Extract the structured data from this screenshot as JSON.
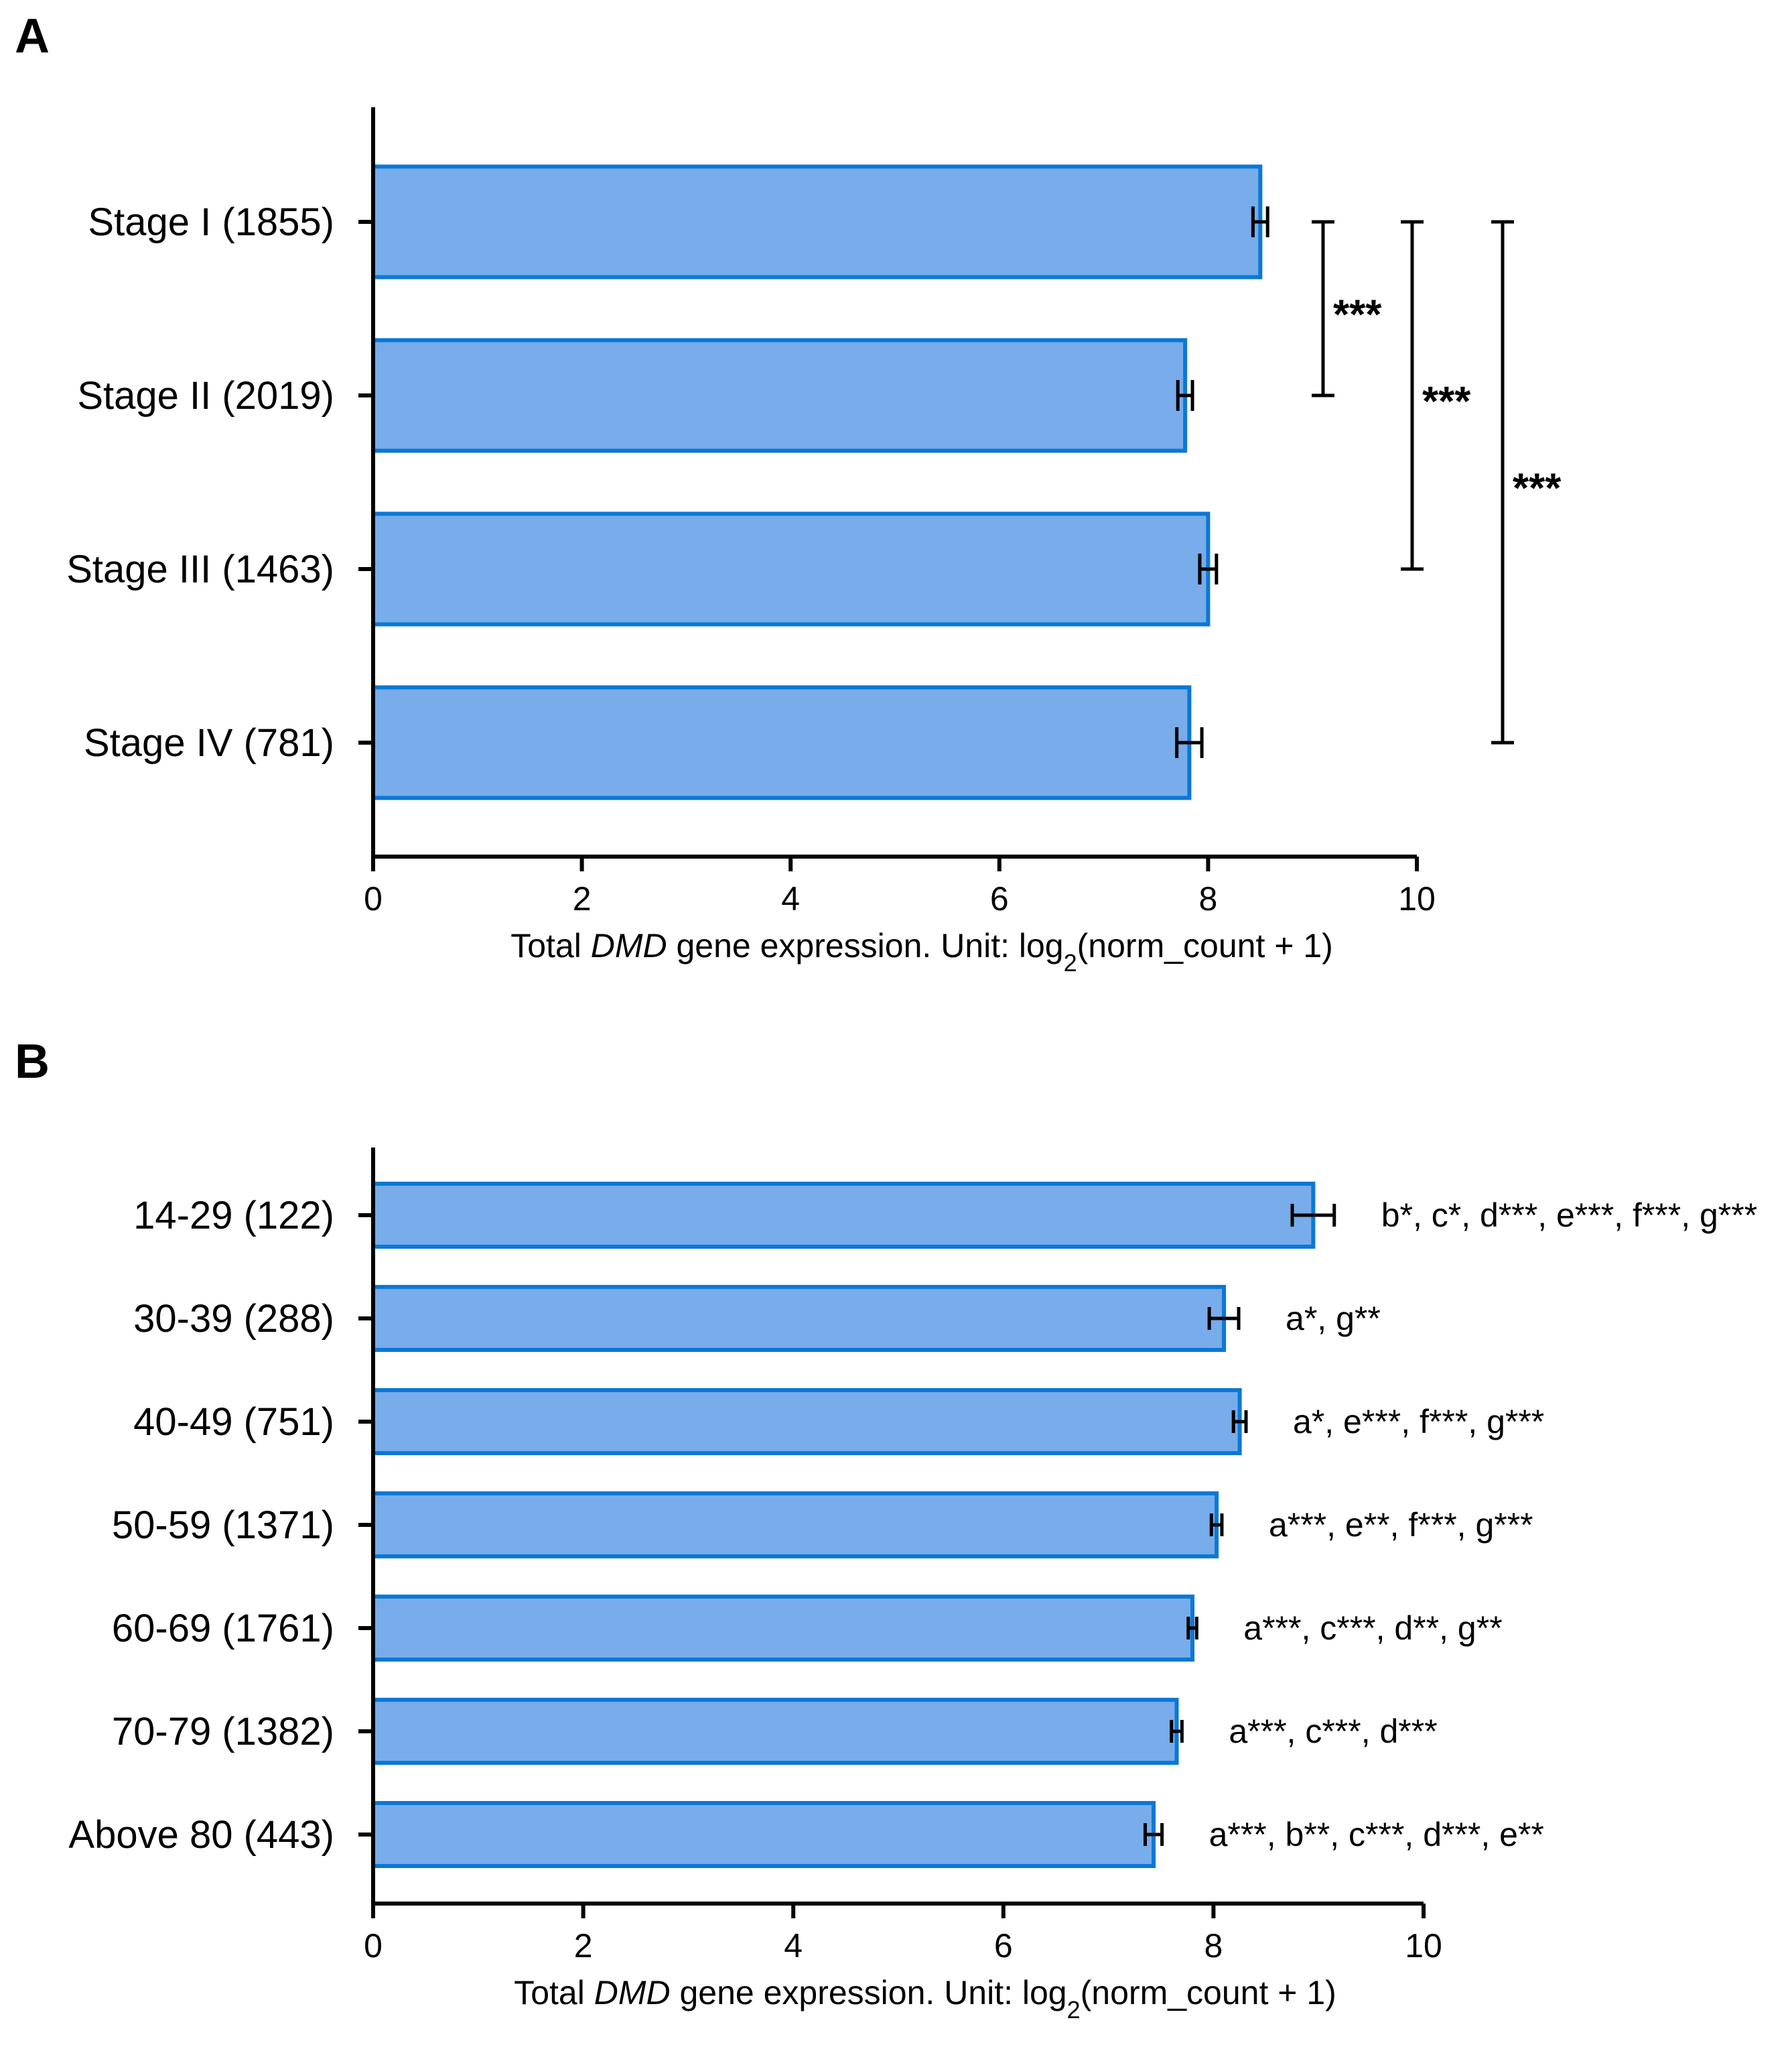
{
  "panel_a_letter": "A",
  "panel_b_letter": "B",
  "chart_data": [
    {
      "panel": "A",
      "type": "bar",
      "orientation": "horizontal",
      "categories": [
        "Stage I (1855)",
        "Stage II (2019)",
        "Stage III (1463)",
        "Stage IV (781)"
      ],
      "values": [
        8.5,
        7.78,
        8.0,
        7.82
      ],
      "errors": [
        0.07,
        0.07,
        0.08,
        0.12
      ],
      "xlim": [
        0,
        10
      ],
      "xticks": [
        0,
        2,
        4,
        6,
        8,
        10
      ],
      "xlabel_prefix": "Total ",
      "xlabel_gene": "DMD",
      "xlabel_mid": " gene expression. Unit: log",
      "xlabel_sub": "2",
      "xlabel_suffix": "(norm_count + 1)",
      "significance": [
        {
          "from": 0,
          "to": 1,
          "label": "***"
        },
        {
          "from": 0,
          "to": 2,
          "label": "***"
        },
        {
          "from": 0,
          "to": 3,
          "label": "***"
        }
      ]
    },
    {
      "panel": "B",
      "type": "bar",
      "orientation": "horizontal",
      "categories": [
        "14-29 (122)",
        "30-39 (288)",
        "40-49 (751)",
        "50-59 (1371)",
        "60-69 (1761)",
        "70-79 (1382)",
        "Above 80 (443)"
      ],
      "values": [
        8.95,
        8.1,
        8.25,
        8.03,
        7.8,
        7.65,
        7.43
      ],
      "errors": [
        0.2,
        0.14,
        0.06,
        0.05,
        0.04,
        0.05,
        0.08
      ],
      "annotations": [
        "b*, c*, d***, e***, f***, g***",
        "a*, g**",
        "a*, e***, f***, g***",
        "a***, e**, f***, g***",
        "a***, c***, d**, g**",
        "a***, c***, d***",
        "a***, b**, c***, d***, e**"
      ],
      "xlim": [
        0,
        10
      ],
      "xticks": [
        0,
        2,
        4,
        6,
        8,
        10
      ],
      "xlabel_prefix": "Total ",
      "xlabel_gene": "DMD",
      "xlabel_mid": " gene expression. Unit: log",
      "xlabel_sub": "2",
      "xlabel_suffix": "(norm_count + 1)"
    }
  ]
}
